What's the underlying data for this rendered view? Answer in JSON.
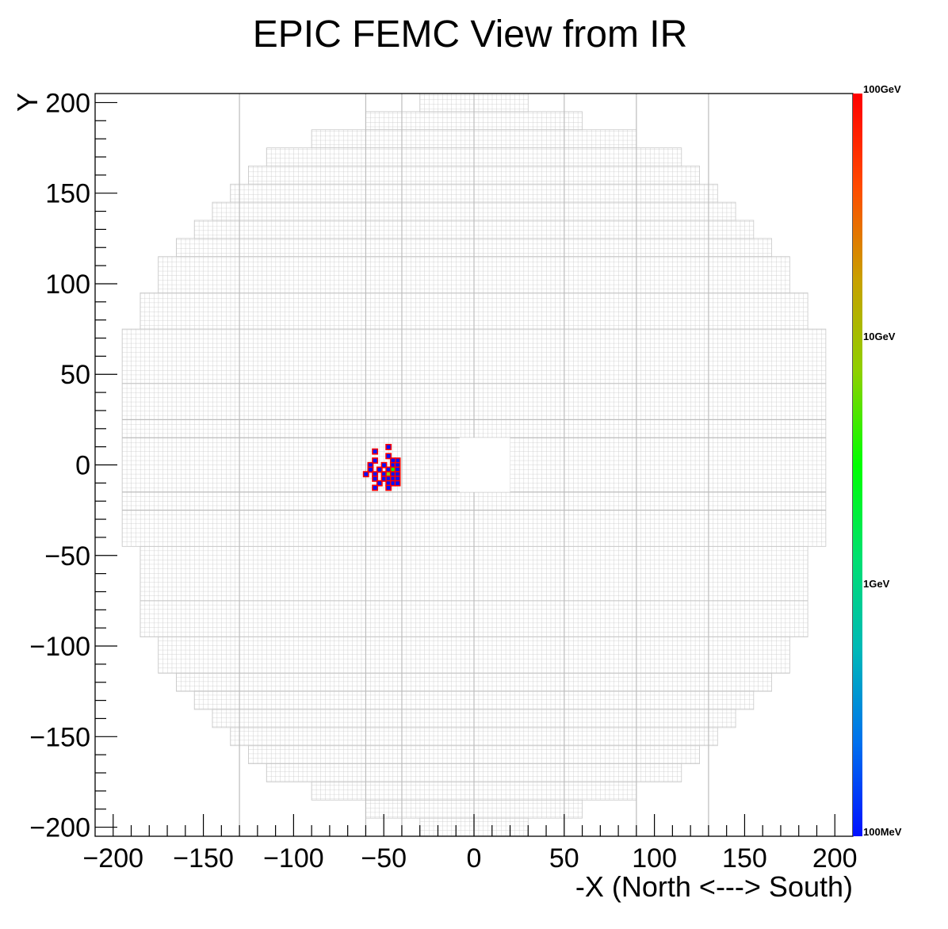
{
  "chart_data": {
    "type": "heatmap",
    "title": "EPIC FEMC View from IR",
    "xlabel": "-X (North <---> South)",
    "ylabel": "Y",
    "xlim": [
      -210,
      210
    ],
    "ylim": [
      -205,
      205
    ],
    "x_ticks": [
      -200,
      -150,
      -100,
      -50,
      0,
      50,
      100,
      150,
      200
    ],
    "y_ticks": [
      200,
      150,
      100,
      50,
      0,
      -50,
      -100,
      -150,
      -200
    ],
    "x_tick_labels": [
      "−200",
      "−150",
      "−100",
      "−50",
      "0",
      "50",
      "100",
      "150",
      "200"
    ],
    "y_tick_labels": [
      "200",
      "150",
      "100",
      "50",
      "0",
      "−50",
      "−100",
      "−150",
      "−200"
    ],
    "colorbar": {
      "scale": "log",
      "labels": [
        "100GeV",
        "10GeV",
        "1GeV",
        "100MeV"
      ],
      "values_gev": [
        100,
        10,
        1,
        0.1
      ],
      "colors": [
        "#ff0000",
        "#ff4a00",
        "#c8a000",
        "#8ed000",
        "#00ff00",
        "#00e070",
        "#00b8b8",
        "#0070ee",
        "#0010ff"
      ]
    },
    "detector": {
      "cell_size": 2.5,
      "beam_hole": {
        "x": [
          -8,
          20
        ],
        "y": [
          -15,
          15
        ]
      },
      "row_extents": [
        {
          "y": [
            195,
            205
          ],
          "x": [
            -30,
            30
          ]
        },
        {
          "y": [
            185,
            195
          ],
          "x": [
            -60,
            60
          ]
        },
        {
          "y": [
            175,
            185
          ],
          "x": [
            -90,
            90
          ]
        },
        {
          "y": [
            165,
            175
          ],
          "x": [
            -115,
            115
          ]
        },
        {
          "y": [
            155,
            165
          ],
          "x": [
            -125,
            125
          ]
        },
        {
          "y": [
            145,
            155
          ],
          "x": [
            -135,
            135
          ]
        },
        {
          "y": [
            135,
            145
          ],
          "x": [
            -145,
            145
          ]
        },
        {
          "y": [
            125,
            135
          ],
          "x": [
            -155,
            155
          ]
        },
        {
          "y": [
            115,
            125
          ],
          "x": [
            -165,
            165
          ]
        },
        {
          "y": [
            95,
            115
          ],
          "x": [
            -175,
            175
          ]
        },
        {
          "y": [
            75,
            95
          ],
          "x": [
            -185,
            185
          ]
        },
        {
          "y": [
            45,
            75
          ],
          "x": [
            -195,
            195
          ]
        },
        {
          "y": [
            -45,
            45
          ],
          "x": [
            -195,
            195
          ]
        },
        {
          "y": [
            -75,
            -45
          ],
          "x": [
            -185,
            185
          ]
        },
        {
          "y": [
            -95,
            -75
          ],
          "x": [
            -185,
            185
          ]
        },
        {
          "y": [
            -115,
            -95
          ],
          "x": [
            -175,
            175
          ]
        },
        {
          "y": [
            -125,
            -115
          ],
          "x": [
            -165,
            165
          ]
        },
        {
          "y": [
            -135,
            -125
          ],
          "x": [
            -155,
            155
          ]
        },
        {
          "y": [
            -145,
            -135
          ],
          "x": [
            -145,
            145
          ]
        },
        {
          "y": [
            -155,
            -145
          ],
          "x": [
            -135,
            135
          ]
        },
        {
          "y": [
            -165,
            -155
          ],
          "x": [
            -125,
            125
          ]
        },
        {
          "y": [
            -175,
            -165
          ],
          "x": [
            -115,
            115
          ]
        },
        {
          "y": [
            -185,
            -175
          ],
          "x": [
            -90,
            90
          ]
        },
        {
          "y": [
            -195,
            -185
          ],
          "x": [
            -60,
            60
          ]
        },
        {
          "y": [
            -205,
            -195
          ],
          "x": [
            -30,
            30
          ]
        }
      ],
      "module_lines_x": [
        -130,
        -60,
        -40,
        0,
        50,
        90,
        130
      ],
      "module_lines_y": [
        25,
        15,
        -15,
        -25
      ]
    },
    "hits": [
      {
        "x": -47.5,
        "y": 10,
        "e_gev": 0.15
      },
      {
        "x": -55,
        "y": 7.5,
        "e_gev": 0.15
      },
      {
        "x": -47.5,
        "y": 5,
        "e_gev": 0.15
      },
      {
        "x": -55,
        "y": 2.5,
        "e_gev": 0.15
      },
      {
        "x": -42.5,
        "y": 2.5,
        "e_gev": 0.15
      },
      {
        "x": -45,
        "y": 2.5,
        "e_gev": 0.15
      },
      {
        "x": -57.5,
        "y": 0,
        "e_gev": 0.15
      },
      {
        "x": -50,
        "y": 0,
        "e_gev": 0.15
      },
      {
        "x": -45,
        "y": 0,
        "e_gev": 0.15
      },
      {
        "x": -42.5,
        "y": 0,
        "e_gev": 0.15
      },
      {
        "x": -57.5,
        "y": -2.5,
        "e_gev": 0.15
      },
      {
        "x": -52.5,
        "y": -2.5,
        "e_gev": 0.15
      },
      {
        "x": -47.5,
        "y": -2.5,
        "e_gev": 0.15
      },
      {
        "x": -45,
        "y": -2.5,
        "e_gev": 3.0
      },
      {
        "x": -42.5,
        "y": -2.5,
        "e_gev": 0.15
      },
      {
        "x": -60,
        "y": -5,
        "e_gev": 0.15
      },
      {
        "x": -55,
        "y": -5,
        "e_gev": 0.15
      },
      {
        "x": -50,
        "y": -5,
        "e_gev": 0.15
      },
      {
        "x": -47.5,
        "y": -5,
        "e_gev": 5.0
      },
      {
        "x": -45,
        "y": -5,
        "e_gev": 0.15
      },
      {
        "x": -42.5,
        "y": -5,
        "e_gev": 0.15
      },
      {
        "x": -55,
        "y": -7.5,
        "e_gev": 0.15
      },
      {
        "x": -50,
        "y": -7.5,
        "e_gev": 0.15
      },
      {
        "x": -47.5,
        "y": -7.5,
        "e_gev": 0.15
      },
      {
        "x": -45,
        "y": -7.5,
        "e_gev": 0.15
      },
      {
        "x": -42.5,
        "y": -7.5,
        "e_gev": 0.15
      },
      {
        "x": -52.5,
        "y": -10,
        "e_gev": 0.15
      },
      {
        "x": -47.5,
        "y": -10,
        "e_gev": 0.15
      },
      {
        "x": -45,
        "y": -10,
        "e_gev": 0.15
      },
      {
        "x": -42.5,
        "y": -10,
        "e_gev": 0.15
      },
      {
        "x": -55,
        "y": -12.5,
        "e_gev": 0.15
      },
      {
        "x": -47.5,
        "y": -12.5,
        "e_gev": 0.15
      }
    ]
  }
}
